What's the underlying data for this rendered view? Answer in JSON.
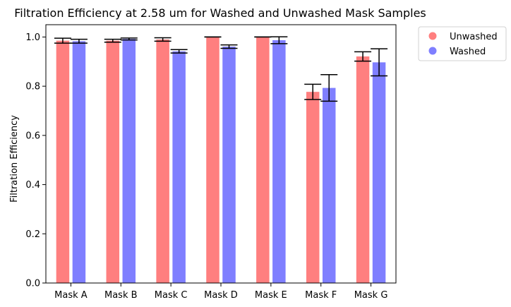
{
  "chart_data": {
    "type": "bar",
    "title": "Filtration Efficiency at 2.58 um for Washed and Unwashed Mask Samples",
    "xlabel": "",
    "ylabel": "Filtration Efficiency",
    "ylim": [
      0,
      1.05
    ],
    "yticks": [
      "0.0",
      "0.2",
      "0.4",
      "0.6",
      "0.8",
      "1.0"
    ],
    "categories": [
      "Mask A",
      "Mask B",
      "Mask C",
      "Mask D",
      "Mask E",
      "Mask F",
      "Mask G"
    ],
    "series": [
      {
        "name": "Unwashed",
        "color": "#ff7f7f",
        "values": [
          0.985,
          0.985,
          0.99,
          1.0,
          1.0,
          0.777,
          0.921
        ],
        "errors": [
          0.01,
          0.006,
          0.007,
          0.0,
          0.0,
          0.031,
          0.019
        ]
      },
      {
        "name": "Washed",
        "color": "#7f7fff",
        "values": [
          0.983,
          0.992,
          0.942,
          0.961,
          0.987,
          0.793,
          0.897
        ],
        "errors": [
          0.008,
          0.004,
          0.007,
          0.007,
          0.014,
          0.054,
          0.055
        ]
      }
    ],
    "legend_position": "outside-top-right",
    "grid": false
  }
}
